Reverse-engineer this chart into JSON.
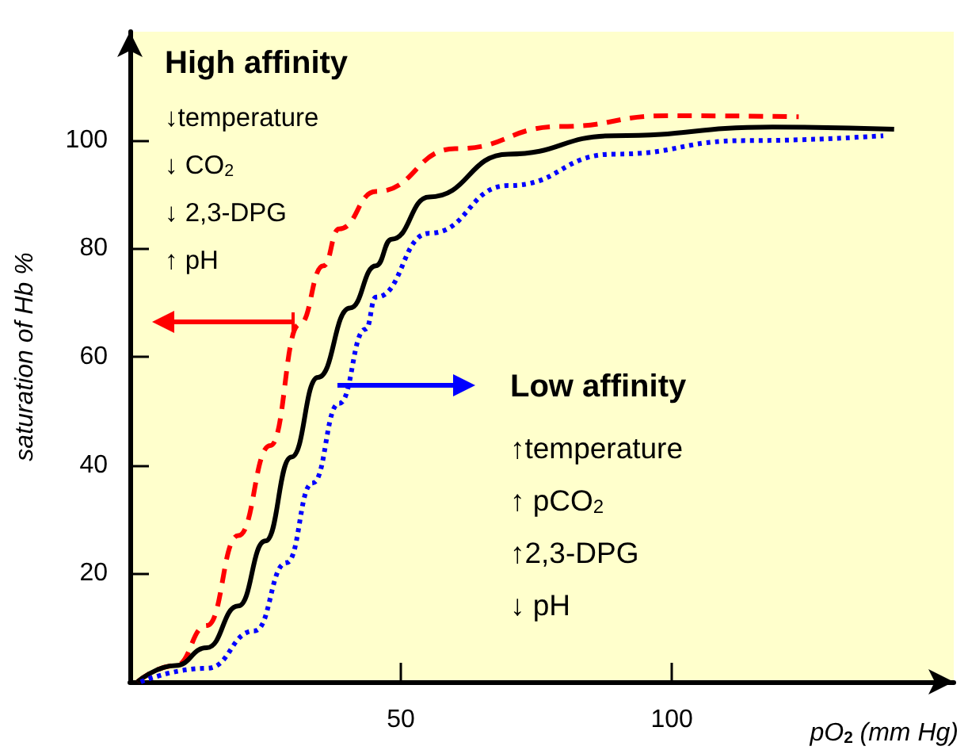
{
  "chart_data": {
    "type": "line",
    "xlabel": "pO$_{2}$ (mm Hg)",
    "ylabel": "saturation of Hb %",
    "xlim": [
      0,
      152
    ],
    "xticks": [
      50,
      100
    ],
    "ylim": [
      0,
      120
    ],
    "yticks": [
      20,
      40,
      60,
      80,
      100
    ],
    "grid": false,
    "marker": "none",
    "series": [
      {
        "color": "#ff0000",
        "line_style": "dashed",
        "x": [
          1.4,
          8.4,
          14.2,
          20,
          25.9,
          31.3,
          35.7,
          38.6,
          45.4,
          60,
          79.5,
          99,
          123.4
        ],
        "values": [
          0,
          3,
          10.4,
          27,
          43.6,
          66,
          76.8,
          83.6,
          90.5,
          98.4,
          102.5,
          104.5,
          104.3
        ]
      },
      {
        "color": "#000000",
        "line_style": "solid",
        "x": [
          1.4,
          8.4,
          14.2,
          20,
          25,
          29.8,
          34.7,
          40.6,
          45.4,
          48.3,
          55.2,
          69.8,
          89.3,
          118.5,
          141
        ],
        "values": [
          0,
          3,
          6.3,
          14,
          26,
          41.5,
          56.2,
          69,
          76.8,
          81.7,
          89.5,
          97.4,
          100.8,
          102.4,
          102
        ]
      },
      {
        "color": "#0000ff",
        "line_style": "dotted",
        "x": [
          2,
          14.2,
          23,
          28.9,
          33.7,
          38.6,
          43.5,
          45.4,
          55.2,
          69.8,
          89.3,
          113.6,
          139
        ],
        "values": [
          0,
          2.5,
          9.4,
          22,
          36.7,
          51.4,
          65.1,
          71,
          82.8,
          91.6,
          97.4,
          99.9,
          100.8
        ]
      }
    ],
    "annotations": [
      "High affinity",
      "↓temperature",
      "↓ CO$_{2}$",
      "↓ 2,3-DPG",
      "↑ pH",
      "Low affinity",
      "↑temperature",
      "↑ pCO$_{2}$",
      "↑2,3-DPG",
      "↓ pH"
    ]
  }
}
